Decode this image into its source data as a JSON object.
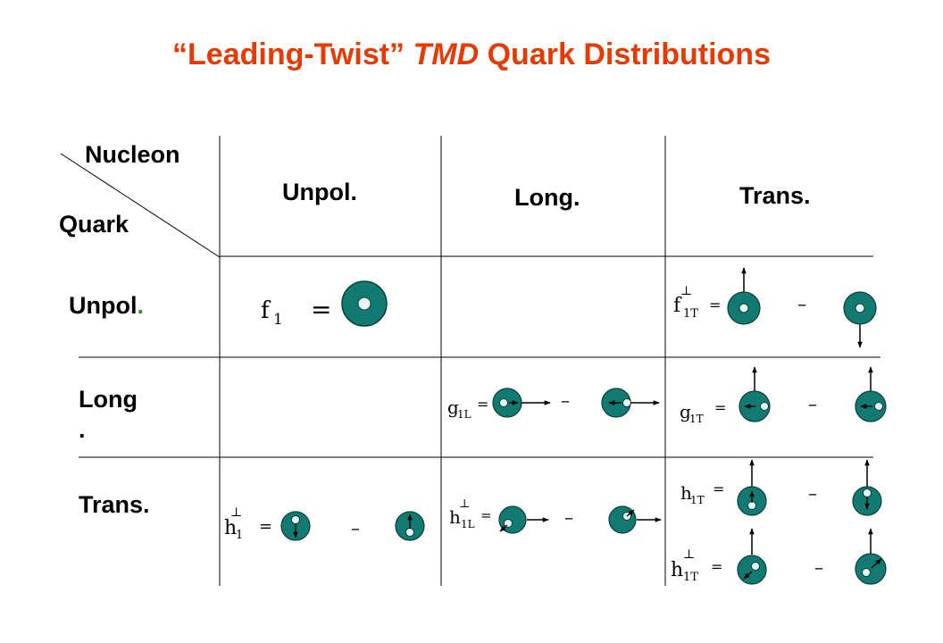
{
  "title": {
    "open_quote": "“",
    "part1": "Leading-Twist”",
    "part2": "TMD",
    "part3": "Quark Distributions"
  },
  "corner": {
    "nucleon": "Nucleon",
    "quark": "Quark"
  },
  "columns": {
    "unpol": "Unpol.",
    "long": "Long.",
    "trans": "Trans."
  },
  "rows": {
    "unpol": "Unpol",
    "unpol_dot": ".",
    "long_line1": "Long",
    "long_line2": ".",
    "trans": "Trans."
  },
  "functions": {
    "f1": {
      "base": "f",
      "sub": "1"
    },
    "f1T_perp": {
      "base": "f",
      "sub": "1T",
      "sup": "⊥"
    },
    "g1L": {
      "base": "g",
      "sub": "1L"
    },
    "g1T": {
      "base": "g",
      "sub": "1T"
    },
    "h1_perp": {
      "base": "h",
      "sub": "1",
      "sup": "⊥"
    },
    "h1L_perp": {
      "base": "h",
      "sub": "1L",
      "sup": "⊥"
    },
    "h1T": {
      "base": "h",
      "sub": "1T"
    },
    "h1T_perp": {
      "base": "h",
      "sub": "1T",
      "sup": "⊥"
    }
  },
  "symbols": {
    "equals": "=",
    "minus": "–"
  },
  "colors": {
    "title": "#e83a00",
    "nucleon_fill": "#127a70",
    "quark_fill": "#e6f6f4",
    "dot": "#2e9a2e"
  }
}
